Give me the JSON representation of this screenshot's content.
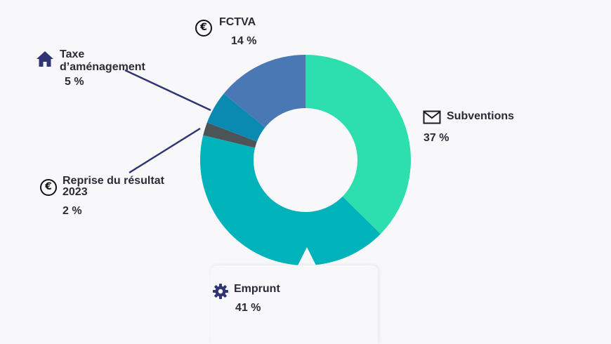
{
  "chart_data": {
    "type": "pie",
    "categories": [
      "Subventions",
      "Emprunt",
      "Reprise du résultat 2023",
      "Taxe d’aménagement",
      "FCTVA"
    ],
    "values": [
      37,
      41,
      2,
      5,
      14
    ],
    "value_labels": [
      "37 %",
      "41 %",
      "2 %",
      "5 %",
      "14 %"
    ],
    "colors": [
      "#2ddeae",
      "#00b3bb",
      "#4d5458",
      "#0a8ab1",
      "#4a78b5"
    ],
    "donut": true,
    "legend": "none"
  },
  "labels": {
    "fctva": {
      "name": "FCTVA",
      "pct": "14 %",
      "icon": "euro-icon"
    },
    "taxe": {
      "name_line1": "Taxe",
      "name_line2": "d’aménagement",
      "pct": "5 %",
      "icon": "home-icon"
    },
    "subventions": {
      "name": "Subventions",
      "pct": "37 %",
      "icon": "envelope-icon"
    },
    "reprise": {
      "name_line1": "Reprise du résultat",
      "name_line2": "2023",
      "pct": "2 %",
      "icon": "euro-icon"
    },
    "emprunt": {
      "name": "Emprunt",
      "pct": "41 %",
      "icon": "gear-icon"
    }
  },
  "icon_glyphs": {
    "euro": "€"
  },
  "leader_color": "#2f3475",
  "icon_color": "#2f3475"
}
